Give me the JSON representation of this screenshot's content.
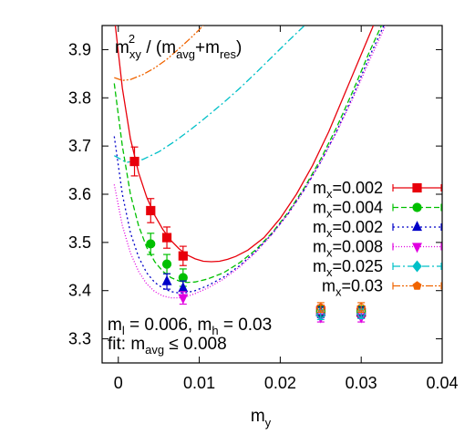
{
  "chart_data": {
    "type": "scatter",
    "title": "",
    "xlabel": "m",
    "xlabel_sub": "y",
    "ylabel": "",
    "xlim": [
      -0.002,
      0.04
    ],
    "ylim": [
      3.25,
      3.95
    ],
    "xticks": [
      {
        "value": 0,
        "label": "0"
      },
      {
        "value": 0.01,
        "label": "0.01"
      },
      {
        "value": 0.02,
        "label": "0.02"
      },
      {
        "value": 0.03,
        "label": "0.03"
      },
      {
        "value": 0.04,
        "label": "0.04"
      }
    ],
    "yticks": [
      {
        "value": 3.3,
        "label": "3.3"
      },
      {
        "value": 3.4,
        "label": "3.4"
      },
      {
        "value": 3.5,
        "label": "3.5"
      },
      {
        "value": 3.6,
        "label": "3.6"
      },
      {
        "value": 3.7,
        "label": "3.7"
      },
      {
        "value": 3.8,
        "label": "3.8"
      },
      {
        "value": 3.9,
        "label": "3.9"
      }
    ],
    "grid": false,
    "legend_position": "right",
    "annotation_top": {
      "base": "m",
      "sub": "xy",
      "sup": "2",
      "mid": " / (m",
      "sub2": "avg",
      "mid2": "+m",
      "sub3": "res",
      "end": ")"
    },
    "annotation_bottom_1": {
      "m1": "m",
      "s1": "l",
      "t1": " = 0.006, ",
      "m2": "m",
      "s2": "h",
      "t2": " = 0.03"
    },
    "annotation_bottom_2": {
      "t1": "fit: ",
      "m": "m",
      "s": "avg",
      "t2": " ≤ 0.008"
    },
    "series": [
      {
        "name": "m_x=0.002",
        "label_base": "m",
        "label_sub": "x",
        "label_val": "=0.002",
        "color": "#e8000b",
        "marker": "square-filled",
        "dash": "",
        "points": [
          {
            "x": 0.002,
            "y": 3.668,
            "err": 0.03
          },
          {
            "x": 0.004,
            "y": 3.566,
            "err": 0.025
          },
          {
            "x": 0.006,
            "y": 3.51,
            "err": 0.022
          },
          {
            "x": 0.008,
            "y": 3.472,
            "err": 0.02
          },
          {
            "x": 0.025,
            "y": 3.358,
            "err": 0.012,
            "open": true
          },
          {
            "x": 0.03,
            "y": 3.355,
            "err": 0.012,
            "open": true
          }
        ],
        "curve": [
          [
            -0.0005,
            3.97
          ],
          [
            0.0005,
            3.82
          ],
          [
            0.0015,
            3.715
          ],
          [
            0.0025,
            3.645
          ],
          [
            0.0035,
            3.594
          ],
          [
            0.0045,
            3.556
          ],
          [
            0.0055,
            3.527
          ],
          [
            0.0065,
            3.504
          ],
          [
            0.0075,
            3.487
          ],
          [
            0.0085,
            3.474
          ],
          [
            0.0095,
            3.466
          ],
          [
            0.0105,
            3.461
          ],
          [
            0.0115,
            3.46
          ],
          [
            0.0125,
            3.461
          ],
          [
            0.0135,
            3.465
          ],
          [
            0.0145,
            3.471
          ],
          [
            0.016,
            3.484
          ],
          [
            0.018,
            3.51
          ],
          [
            0.02,
            3.55
          ],
          [
            0.022,
            3.6
          ],
          [
            0.024,
            3.66
          ],
          [
            0.026,
            3.73
          ],
          [
            0.028,
            3.81
          ],
          [
            0.03,
            3.89
          ],
          [
            0.0315,
            3.95
          ]
        ]
      },
      {
        "name": "m_x=0.004",
        "label_base": "m",
        "label_sub": "x",
        "label_val": "=0.004",
        "color": "#00c000",
        "marker": "circle-filled",
        "dash": "6,3",
        "points": [
          {
            "x": 0.004,
            "y": 3.497,
            "err": 0.022
          },
          {
            "x": 0.006,
            "y": 3.455,
            "err": 0.02
          },
          {
            "x": 0.008,
            "y": 3.427,
            "err": 0.018
          },
          {
            "x": 0.025,
            "y": 3.357,
            "err": 0.011,
            "open": true
          },
          {
            "x": 0.03,
            "y": 3.357,
            "err": 0.011,
            "open": true
          }
        ],
        "curve": [
          [
            -0.0005,
            3.83
          ],
          [
            0.0005,
            3.7
          ],
          [
            0.0015,
            3.6
          ],
          [
            0.0025,
            3.535
          ],
          [
            0.0035,
            3.49
          ],
          [
            0.0045,
            3.46
          ],
          [
            0.0055,
            3.44
          ],
          [
            0.0065,
            3.427
          ],
          [
            0.0075,
            3.42
          ],
          [
            0.0085,
            3.417
          ],
          [
            0.0095,
            3.418
          ],
          [
            0.011,
            3.424
          ],
          [
            0.013,
            3.437
          ],
          [
            0.015,
            3.458
          ],
          [
            0.017,
            3.485
          ],
          [
            0.019,
            3.52
          ],
          [
            0.021,
            3.563
          ],
          [
            0.023,
            3.614
          ],
          [
            0.025,
            3.673
          ],
          [
            0.027,
            3.74
          ],
          [
            0.029,
            3.815
          ],
          [
            0.031,
            3.895
          ],
          [
            0.0325,
            3.95
          ]
        ]
      },
      {
        "name": "m_x=0.002",
        "label_base": "m",
        "label_sub": "x",
        "label_val": "=0.002",
        "color": "#0000c8",
        "marker": "triangle-up-filled",
        "dash": "2,3",
        "points": [
          {
            "x": 0.006,
            "y": 3.419,
            "err": 0.016
          },
          {
            "x": 0.008,
            "y": 3.405,
            "err": 0.015
          },
          {
            "x": 0.025,
            "y": 3.355,
            "err": 0.011,
            "open": true
          },
          {
            "x": 0.03,
            "y": 3.355,
            "err": 0.011,
            "open": true
          }
        ],
        "curve": [
          [
            -0.0005,
            3.72
          ],
          [
            0.0005,
            3.6
          ],
          [
            0.0015,
            3.52
          ],
          [
            0.0025,
            3.47
          ],
          [
            0.0035,
            3.437
          ],
          [
            0.0045,
            3.417
          ],
          [
            0.0055,
            3.405
          ],
          [
            0.0065,
            3.398
          ],
          [
            0.0075,
            3.395
          ],
          [
            0.0085,
            3.396
          ],
          [
            0.0095,
            3.4
          ],
          [
            0.011,
            3.41
          ],
          [
            0.013,
            3.428
          ],
          [
            0.015,
            3.452
          ],
          [
            0.017,
            3.482
          ],
          [
            0.019,
            3.518
          ],
          [
            0.021,
            3.56
          ],
          [
            0.023,
            3.61
          ],
          [
            0.025,
            3.667
          ],
          [
            0.027,
            3.732
          ],
          [
            0.029,
            3.805
          ],
          [
            0.031,
            3.885
          ],
          [
            0.0328,
            3.95
          ]
        ]
      },
      {
        "name": "m_x=0.008",
        "label_base": "m",
        "label_sub": "x",
        "label_val": "=0.008",
        "color": "#e000e0",
        "marker": "triangle-down-filled",
        "dash": "1,2",
        "points": [
          {
            "x": 0.008,
            "y": 3.385,
            "err": 0.013
          },
          {
            "x": 0.025,
            "y": 3.345,
            "err": 0.01,
            "open": true
          },
          {
            "x": 0.03,
            "y": 3.345,
            "err": 0.01,
            "open": true
          }
        ],
        "curve": [
          [
            -0.0005,
            3.62
          ],
          [
            0.0005,
            3.535
          ],
          [
            0.0015,
            3.478
          ],
          [
            0.0025,
            3.44
          ],
          [
            0.0035,
            3.414
          ],
          [
            0.0045,
            3.398
          ],
          [
            0.0055,
            3.389
          ],
          [
            0.0065,
            3.385
          ],
          [
            0.0075,
            3.385
          ],
          [
            0.0085,
            3.388
          ],
          [
            0.0095,
            3.394
          ],
          [
            0.011,
            3.405
          ],
          [
            0.013,
            3.424
          ],
          [
            0.015,
            3.449
          ],
          [
            0.017,
            3.48
          ],
          [
            0.019,
            3.517
          ],
          [
            0.021,
            3.56
          ],
          [
            0.023,
            3.61
          ],
          [
            0.025,
            3.667
          ],
          [
            0.027,
            3.73
          ],
          [
            0.029,
            3.8
          ],
          [
            0.031,
            3.877
          ],
          [
            0.033,
            3.95
          ]
        ]
      },
      {
        "name": "m_x=0.025",
        "label_base": "m",
        "label_sub": "x",
        "label_val": "=0.025",
        "color": "#00c0c8",
        "marker": "diamond-filled",
        "dash": "8,3,2,3",
        "points": [
          {
            "x": 0.025,
            "y": 3.35,
            "err": 0.01,
            "open": true
          },
          {
            "x": 0.03,
            "y": 3.352,
            "err": 0.01,
            "open": true
          }
        ],
        "curve": [
          [
            -0.0005,
            3.68
          ],
          [
            0.001,
            3.666
          ],
          [
            0.003,
            3.672
          ],
          [
            0.005,
            3.688
          ],
          [
            0.007,
            3.71
          ],
          [
            0.009,
            3.735
          ],
          [
            0.011,
            3.762
          ],
          [
            0.013,
            3.79
          ],
          [
            0.015,
            3.82
          ],
          [
            0.017,
            3.852
          ],
          [
            0.019,
            3.885
          ],
          [
            0.021,
            3.918
          ],
          [
            0.023,
            3.95
          ]
        ]
      },
      {
        "name": "m_x=0.03",
        "label_base": "m",
        "label_sub": "x",
        "label_val": "=0.03",
        "color": "#f06400",
        "marker": "pentagon-filled",
        "dash": "8,2,2,2,2,2",
        "points": [
          {
            "x": 0.025,
            "y": 3.365,
            "err": 0.01,
            "open": true
          },
          {
            "x": 0.03,
            "y": 3.365,
            "err": 0.01,
            "open": true
          }
        ],
        "curve": [
          [
            -0.0005,
            3.842
          ],
          [
            0.0005,
            3.836
          ],
          [
            0.0015,
            3.838
          ],
          [
            0.003,
            3.848
          ],
          [
            0.0045,
            3.862
          ],
          [
            0.006,
            3.88
          ],
          [
            0.0075,
            3.902
          ],
          [
            0.009,
            3.925
          ],
          [
            0.0105,
            3.95
          ]
        ]
      }
    ]
  }
}
